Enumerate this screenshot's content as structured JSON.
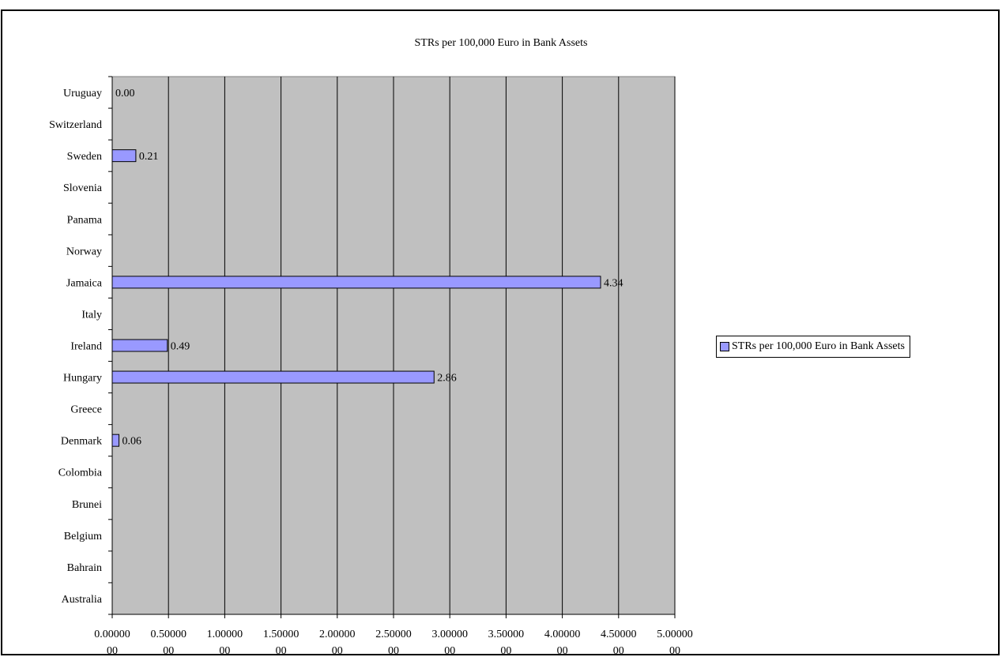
{
  "chart_data": {
    "type": "bar",
    "orientation": "horizontal",
    "title": "STRs per  100,000 Euro in Bank Assets",
    "xlabel": "",
    "ylabel": "",
    "categories": [
      "Uruguay",
      "Switzerland",
      "Sweden",
      "Slovenia",
      "Panama",
      "Norway",
      "Jamaica",
      "Italy",
      "Ireland",
      "Hungary",
      "Greece",
      "Denmark",
      "Colombia",
      "Brunei",
      "Belgium",
      "Bahrain",
      "Australia"
    ],
    "series": [
      {
        "name": "STRs per  100,000 Euro in Bank Assets",
        "values": [
          0.0,
          null,
          0.21,
          null,
          null,
          null,
          4.34,
          null,
          0.49,
          2.86,
          null,
          0.06,
          null,
          null,
          null,
          null,
          null
        ],
        "data_labels": [
          "0.00",
          "",
          "0.21",
          "",
          "",
          "",
          "4.34",
          "",
          "0.49",
          "2.86",
          "",
          "0.06",
          "",
          "",
          "",
          "",
          ""
        ]
      }
    ],
    "xlim": [
      0,
      5
    ],
    "xtick_labels": [
      [
        "0.00000",
        "00"
      ],
      [
        "0.50000",
        "00"
      ],
      [
        "1.00000",
        "00"
      ],
      [
        "1.50000",
        "00"
      ],
      [
        "2.00000",
        "00"
      ],
      [
        "2.50000",
        "00"
      ],
      [
        "3.00000",
        "00"
      ],
      [
        "3.50000",
        "00"
      ],
      [
        "4.00000",
        "00"
      ],
      [
        "4.50000",
        "00"
      ],
      [
        "5.00000",
        "00"
      ]
    ],
    "grid": "vertical",
    "legend_position": "right",
    "colors": {
      "bar": "#9999ff",
      "plot_background": "#c0c0c0",
      "gridline": "#000000"
    }
  }
}
